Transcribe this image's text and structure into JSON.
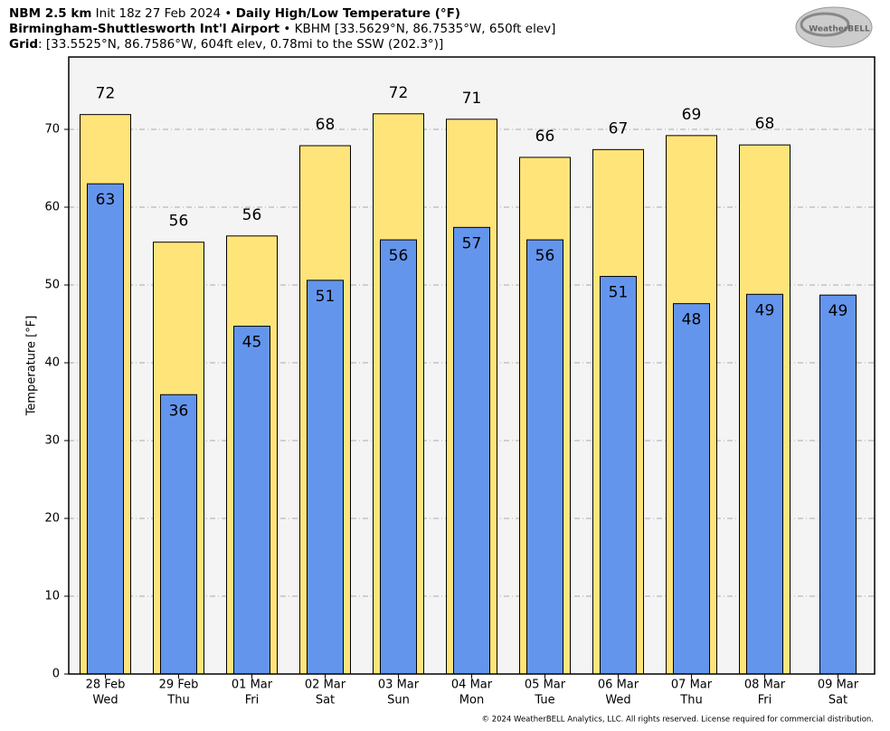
{
  "chart_data": {
    "type": "bar",
    "header": [
      [
        {
          "text": "NBM 2.5 km",
          "bold": true
        },
        {
          "text": " Init 18z 27 Feb 2024 • ",
          "bold": false
        },
        {
          "text": "Daily High/Low Temperature (°F)",
          "bold": true
        }
      ],
      [
        {
          "text": "Birmingham-Shuttlesworth Int'l Airport",
          "bold": true
        },
        {
          "text": " • KBHM [33.5629°N, 86.7535°W, 650ft elev]",
          "bold": false
        }
      ],
      [
        {
          "text": "Grid",
          "bold": true
        },
        {
          "text": ": [33.5525°N, 86.7586°W, 604ft elev, 0.78mi to the SSW (202.3°)]",
          "bold": false
        }
      ]
    ],
    "logo": "WeatherBELL",
    "ylabel": "Temperature [°F]",
    "footer": "© 2024 WeatherBELL Analytics, LLC. All rights reserved. License required for commercial distribution.",
    "categories": [
      "28 Feb",
      "29 Feb",
      "01 Mar",
      "02 Mar",
      "03 Mar",
      "04 Mar",
      "05 Mar",
      "06 Mar",
      "07 Mar",
      "08 Mar",
      "09 Mar"
    ],
    "weekdays": [
      "Wed",
      "Thu",
      "Fri",
      "Sat",
      "Sun",
      "Mon",
      "Tue",
      "Wed",
      "Thu",
      "Fri",
      "Sat"
    ],
    "series": [
      {
        "color": "#ffe47a",
        "values": [
          71.9,
          55.5,
          56.3,
          67.9,
          72.0,
          71.3,
          66.4,
          67.4,
          69.2,
          68.0,
          null
        ],
        "value_labels": [
          "72",
          "56",
          "56",
          "68",
          "72",
          "71",
          "66",
          "67",
          "69",
          "68",
          null
        ]
      },
      {
        "color": "#6495ed",
        "values": [
          63.0,
          35.9,
          44.7,
          50.6,
          55.8,
          57.4,
          55.8,
          51.1,
          47.6,
          48.8,
          48.7
        ],
        "value_labels": [
          "63",
          "36",
          "45",
          "51",
          "56",
          "57",
          "56",
          "51",
          "48",
          "49",
          "49"
        ]
      }
    ],
    "ylim": [
      0,
      79.3
    ],
    "yticks": [
      0,
      10,
      20,
      30,
      40,
      50,
      60,
      70
    ],
    "grid": true
  }
}
